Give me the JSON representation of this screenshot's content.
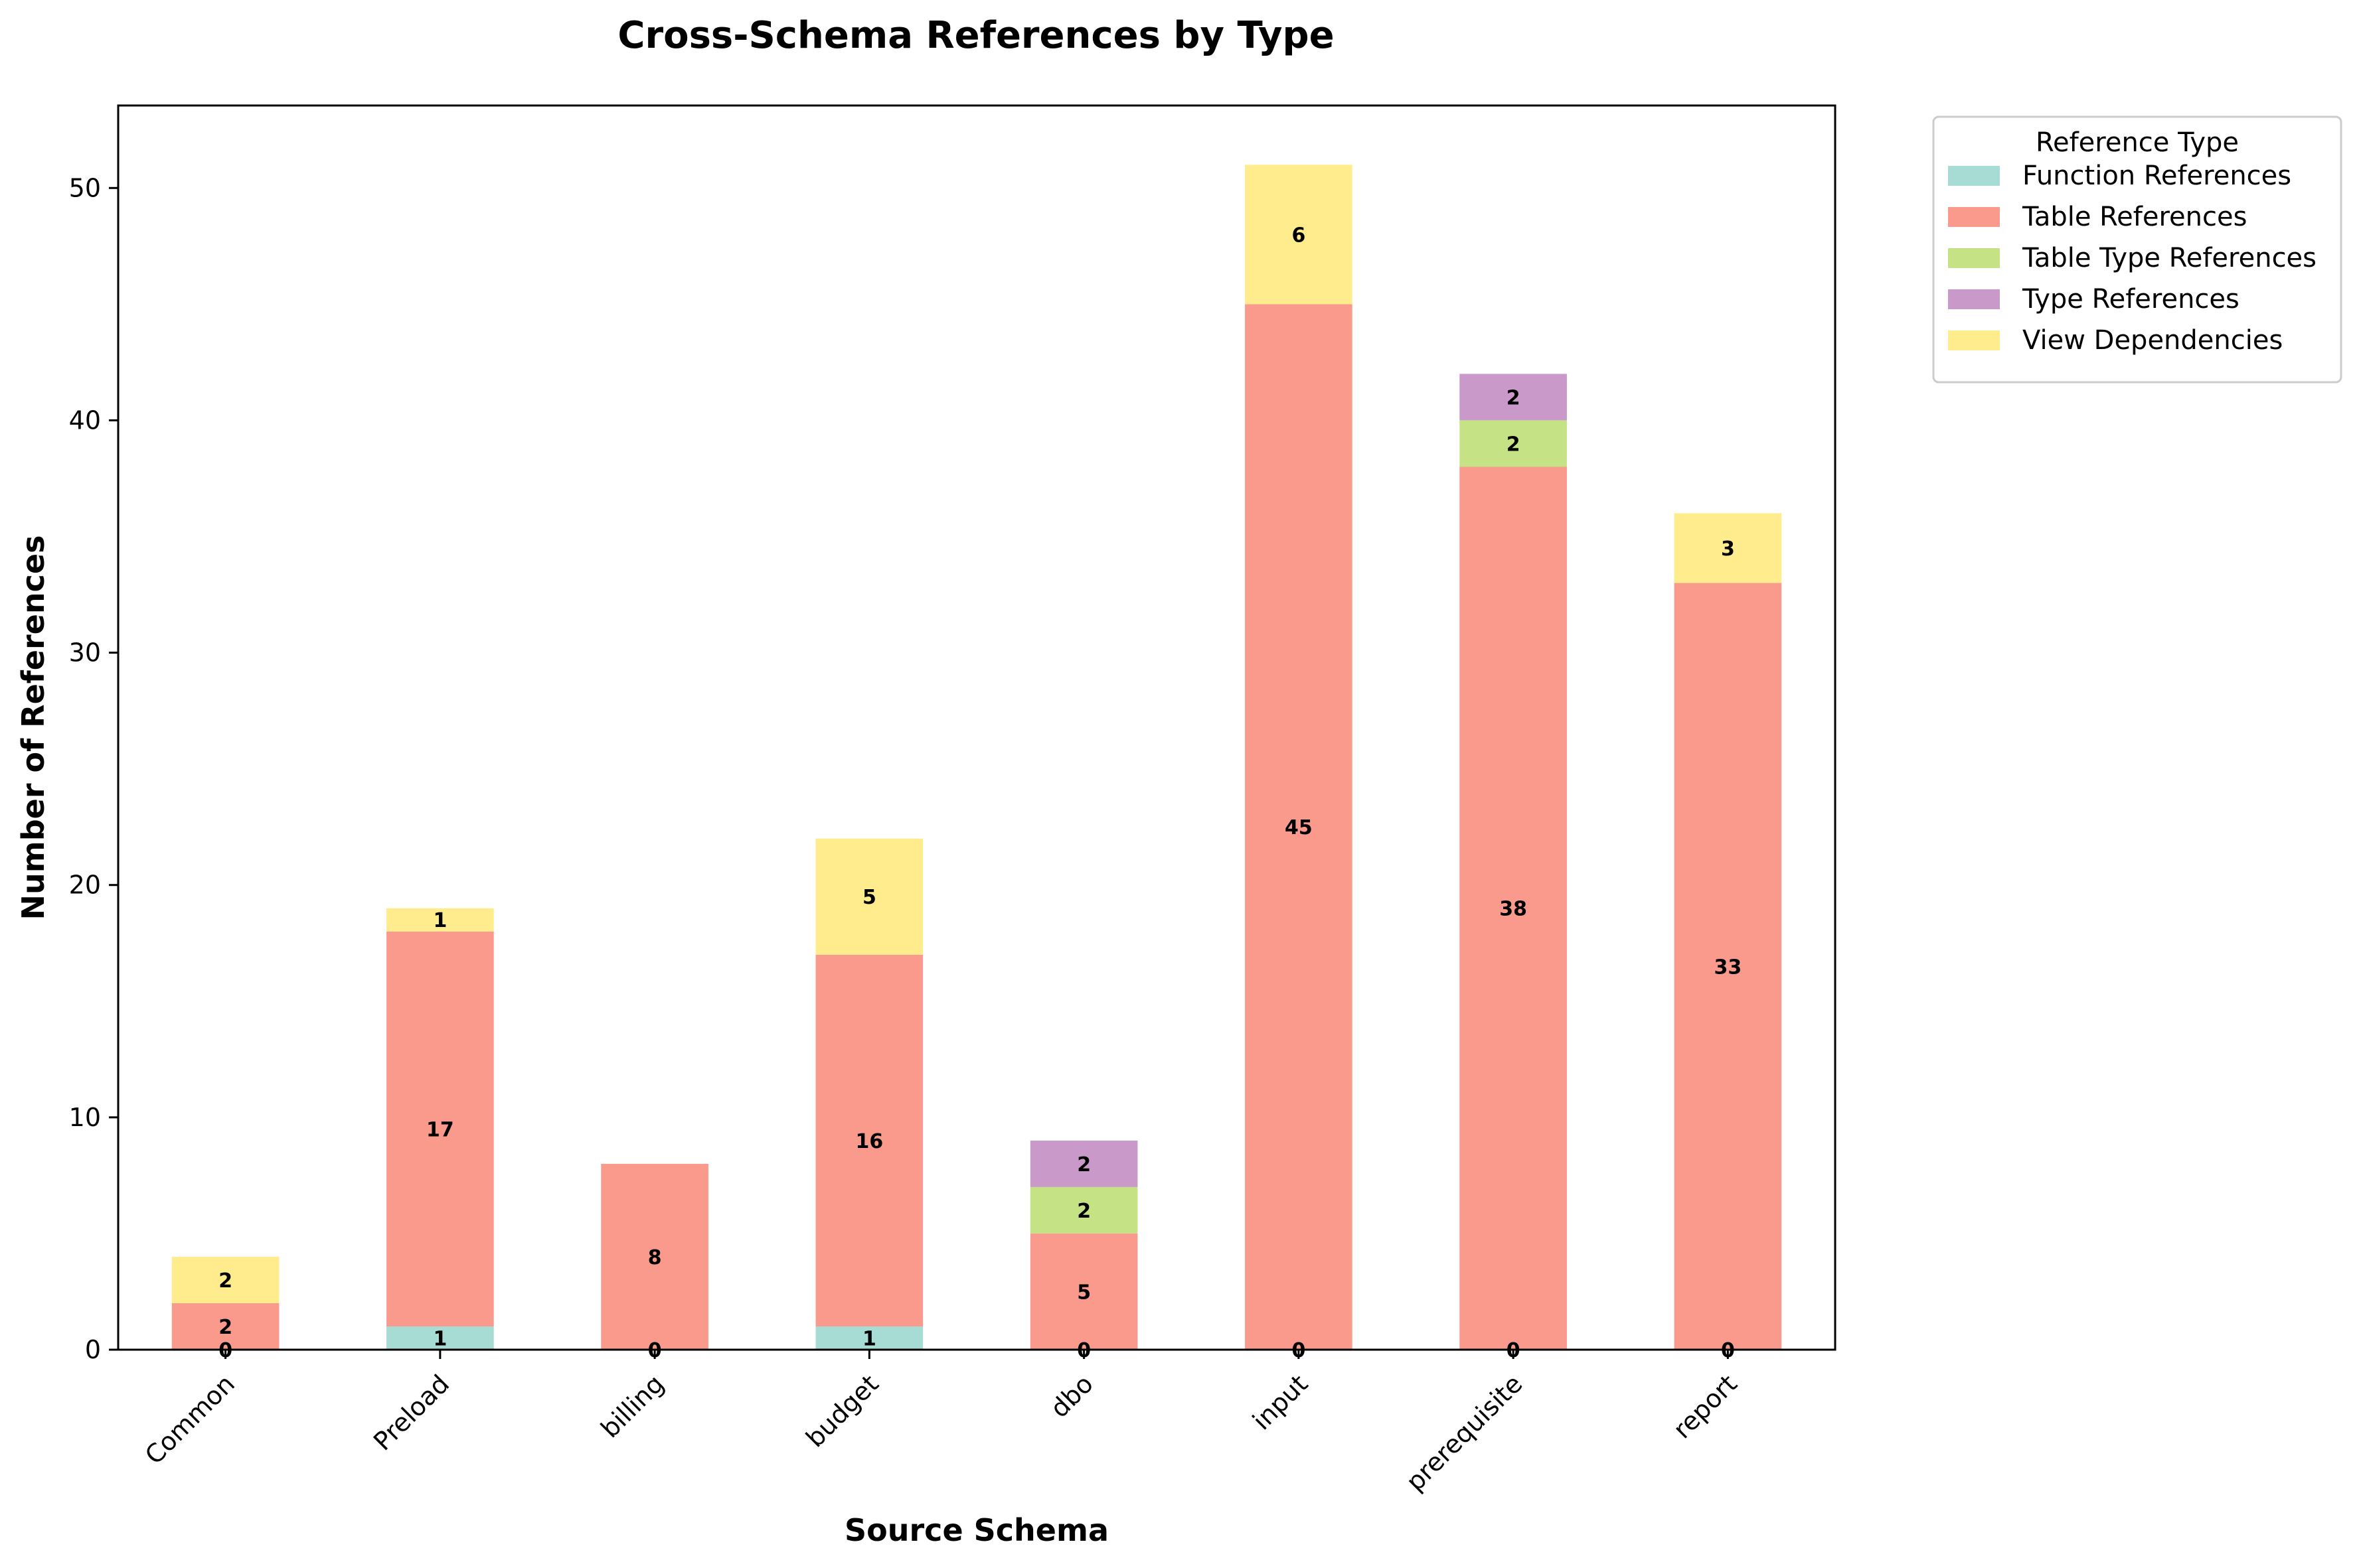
{
  "chart_data": {
    "type": "bar",
    "stacked": true,
    "title": "Cross-Schema References by Type",
    "xlabel": "Source Schema",
    "ylabel": "Number of References",
    "categories": [
      "Common",
      "Preload",
      "billing",
      "budget",
      "dbo",
      "input",
      "prerequisite",
      "report"
    ],
    "ylim": [
      0,
      53.55
    ],
    "yticks": [
      0,
      10,
      20,
      30,
      40,
      50
    ],
    "grid": false,
    "legend": {
      "title": "Reference Type",
      "placement": "outside-top-right"
    },
    "series": [
      {
        "name": "Function References",
        "color": "#a6dcd3",
        "values": [
          0,
          1,
          0,
          1,
          0,
          0,
          0,
          0
        ]
      },
      {
        "name": "Table References",
        "color": "#f99a8d",
        "values": [
          2,
          17,
          8,
          16,
          5,
          45,
          38,
          33
        ]
      },
      {
        "name": "Table Type References",
        "color": "#c5e385",
        "values": [
          0,
          0,
          0,
          0,
          2,
          0,
          2,
          0
        ]
      },
      {
        "name": "Type References",
        "color": "#c99ac9",
        "values": [
          0,
          0,
          0,
          0,
          2,
          0,
          2,
          0
        ]
      },
      {
        "name": "View Dependencies",
        "color": "#ffed8d",
        "values": [
          2,
          1,
          0,
          5,
          0,
          6,
          0,
          3
        ]
      }
    ]
  }
}
